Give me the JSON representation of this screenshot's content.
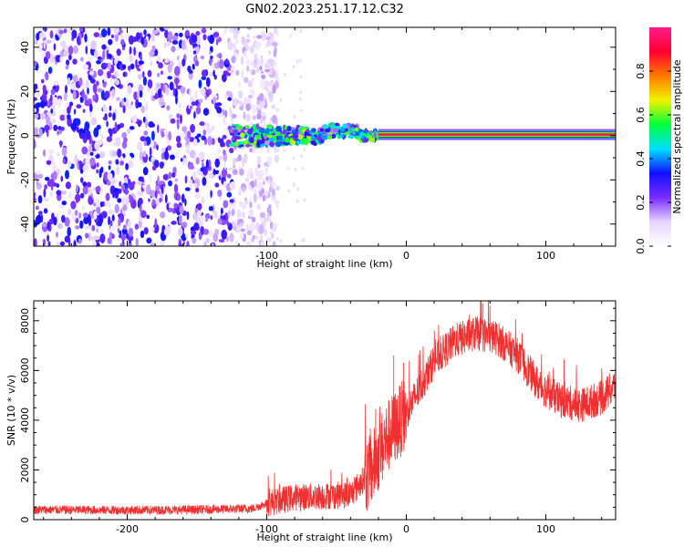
{
  "title": "GN02.2023.251.17.12.C32",
  "colors": {
    "snr_line": "#f03030",
    "axis": "#000000",
    "colormap": [
      "#ffffff",
      "#e6d4ff",
      "#7a2cff",
      "#1010ff",
      "#00e0ff",
      "#00ff3a",
      "#f2f200",
      "#ff7a00",
      "#ff0030",
      "#ff1a8c"
    ]
  },
  "chart_data": [
    {
      "type": "heatmap",
      "name": "spectrogram",
      "xlabel": "Height of straight line (km)",
      "ylabel": "Frequency (Hz)",
      "xlim": [
        -267,
        150
      ],
      "ylim": [
        -50,
        49
      ],
      "xticks": [
        -200,
        -100,
        0,
        100
      ],
      "yticks": [
        -40,
        -20,
        0,
        20,
        40
      ],
      "colorbar": {
        "label": "Normalized spectral amplitude",
        "range": [
          0.0,
          1.0
        ],
        "ticks": [
          0.0,
          0.2,
          0.4,
          0.6,
          0.8
        ]
      },
      "features": {
        "noise_region_x": [
          -267,
          -112
        ],
        "noise_amplitude": 0.3,
        "transition_region_x": [
          -125,
          -20
        ],
        "transition_amplitude": 0.5,
        "signal_line_x": [
          -20,
          150
        ],
        "signal_line_freq": 0.5,
        "signal_line_amplitude": 0.95
      }
    },
    {
      "type": "line",
      "name": "snr",
      "xlabel": "Height of straight line (km)",
      "ylabel": "SNR (10 * v/v)",
      "xlim": [
        -267,
        150
      ],
      "ylim": [
        0,
        8800
      ],
      "xticks": [
        -200,
        -100,
        0,
        100
      ],
      "yticks": [
        0,
        2000,
        4000,
        6000,
        8000
      ],
      "trend": {
        "x": [
          -267,
          -200,
          -150,
          -110,
          -100,
          -80,
          -60,
          -40,
          -25,
          -15,
          0,
          10,
          20,
          35,
          50,
          65,
          80,
          95,
          110,
          125,
          140,
          150
        ],
        "y": [
          400,
          380,
          400,
          450,
          650,
          900,
          950,
          1000,
          2000,
          3200,
          4300,
          5300,
          6400,
          7200,
          7500,
          7300,
          6600,
          5400,
          4800,
          4600,
          4900,
          5400
        ]
      },
      "noise_amplitude": [
        {
          "x": [
            -267,
            -100
          ],
          "amp": 180
        },
        {
          "x": [
            -100,
            -30
          ],
          "amp": 550
        },
        {
          "x": [
            -30,
            0
          ],
          "amp": 1500
        },
        {
          "x": [
            0,
            150
          ],
          "amp": 700
        }
      ],
      "spikes": [
        {
          "x": -9,
          "y": 6600
        },
        {
          "x": -2,
          "y": 6300
        },
        {
          "x": 55,
          "y": 8700
        },
        {
          "x": 60,
          "y": 8600
        }
      ]
    }
  ]
}
